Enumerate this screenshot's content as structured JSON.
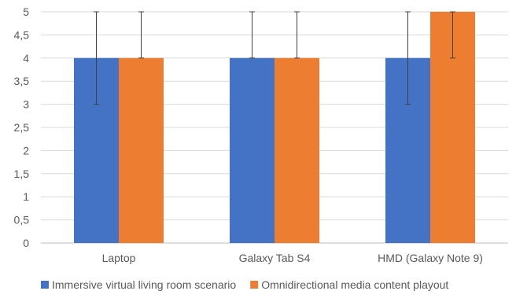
{
  "chart_data": {
    "type": "bar",
    "title": "",
    "xlabel": "",
    "ylabel": "",
    "categories": [
      "Laptop",
      "Galaxy Tab S4",
      "HMD (Galaxy Note 9)"
    ],
    "ylim": [
      0,
      5
    ],
    "y_ticks": [
      "0",
      "0,5",
      "1",
      "1,5",
      "2",
      "2,5",
      "3",
      "3,5",
      "4",
      "4,5",
      "5"
    ],
    "y_tick_values": [
      0,
      0.5,
      1,
      1.5,
      2,
      2.5,
      3,
      3.5,
      4,
      4.5,
      5
    ],
    "grid": true,
    "legend_position": "bottom",
    "series": [
      {
        "name": "Immersive virtual living room scenario",
        "color": "#4472C4",
        "values": [
          4,
          4,
          4
        ],
        "error_low": [
          3,
          4,
          3
        ],
        "error_high": [
          5,
          5,
          5
        ]
      },
      {
        "name": "Omnidirectional media content playout",
        "color": "#ED7D31",
        "values": [
          4,
          4,
          5
        ],
        "error_low": [
          4,
          4,
          4
        ],
        "error_high": [
          5,
          5,
          5
        ]
      }
    ]
  }
}
